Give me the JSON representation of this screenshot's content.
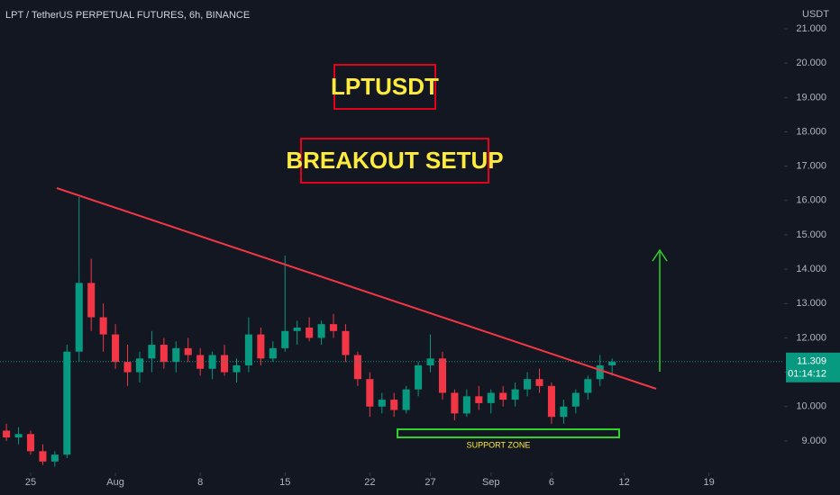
{
  "chart_data": {
    "type": "candlestick",
    "title": "LPT / TetherUS PERPETUAL FUTURES, 6h, BINANCE",
    "currency": "USDT",
    "annotations": [
      "LPTUSDT",
      "BREAKOUT SETUP",
      "SUPPORT ZONE"
    ],
    "last_price": 11.309,
    "countdown": "01:14:12",
    "up_color": "#089981",
    "down_color": "#f23645",
    "x": [
      -2,
      -1,
      0,
      1,
      2,
      3,
      4,
      5,
      6,
      7,
      8,
      9,
      10,
      11,
      12,
      13,
      14,
      15,
      16,
      17,
      18,
      19,
      20,
      21,
      22,
      23,
      24,
      25,
      26,
      27,
      28,
      29,
      30,
      31,
      32,
      33,
      34,
      35,
      36,
      37,
      38,
      39,
      40,
      41,
      42,
      43,
      44,
      45,
      46,
      47,
      48
    ],
    "series": [
      {
        "open": [
          9.3,
          9.1,
          9.2,
          8.7,
          8.4,
          8.6,
          11.6,
          13.6,
          12.6,
          12.1,
          11.3,
          11.0,
          11.4,
          11.8,
          11.3,
          11.7,
          11.5,
          11.1,
          11.5,
          11.0,
          11.2,
          12.1,
          11.4,
          11.7,
          12.2,
          12.3,
          12.0,
          12.4,
          12.2,
          11.5,
          10.8,
          10.0,
          10.2,
          9.9,
          10.5,
          11.2,
          11.4,
          10.4,
          9.8,
          10.3,
          10.1,
          10.4,
          10.2,
          10.5,
          10.8,
          10.6,
          9.7,
          10.0,
          10.4,
          10.8,
          11.2
        ],
        "high": [
          9.5,
          9.4,
          9.3,
          8.9,
          8.7,
          11.8,
          16.1,
          14.3,
          13.0,
          12.4,
          11.8,
          11.6,
          12.2,
          12.0,
          11.9,
          12.0,
          11.7,
          11.6,
          11.8,
          11.4,
          12.6,
          12.3,
          11.9,
          14.4,
          12.5,
          12.6,
          12.5,
          12.7,
          12.4,
          11.6,
          11.0,
          10.4,
          10.4,
          10.6,
          11.3,
          12.1,
          11.6,
          10.5,
          10.5,
          10.6,
          10.5,
          10.6,
          10.7,
          11.0,
          11.1,
          10.7,
          10.2,
          10.5,
          10.9,
          11.5,
          11.4
        ],
        "low": [
          9.0,
          8.9,
          8.6,
          8.3,
          8.25,
          8.5,
          11.3,
          12.2,
          11.6,
          11.1,
          10.6,
          10.7,
          11.0,
          11.1,
          11.0,
          11.3,
          10.9,
          10.8,
          10.9,
          10.7,
          11.0,
          11.2,
          11.3,
          11.6,
          11.8,
          11.9,
          11.8,
          12.0,
          11.3,
          10.6,
          9.7,
          9.8,
          9.7,
          9.8,
          10.3,
          11.0,
          10.2,
          9.6,
          9.7,
          9.9,
          9.8,
          10.0,
          10.0,
          10.3,
          10.4,
          9.5,
          9.5,
          9.8,
          10.2,
          10.6,
          10.9
        ],
        "close": [
          9.1,
          9.2,
          8.7,
          8.4,
          8.6,
          11.6,
          13.6,
          12.6,
          12.1,
          11.3,
          11.0,
          11.4,
          11.8,
          11.3,
          11.7,
          11.5,
          11.1,
          11.5,
          11.0,
          11.2,
          12.1,
          11.4,
          11.7,
          12.2,
          12.3,
          12.0,
          12.4,
          12.2,
          11.5,
          10.8,
          10.0,
          10.2,
          9.9,
          10.5,
          11.2,
          11.4,
          10.4,
          9.8,
          10.3,
          10.1,
          10.4,
          10.2,
          10.5,
          10.8,
          10.6,
          9.7,
          10.0,
          10.4,
          10.8,
          11.2,
          11.309
        ]
      }
    ],
    "xlim": [
      -2.53,
      62.2
    ],
    "xticks": [
      {
        "value": 0,
        "label": "25"
      },
      {
        "value": 7,
        "label": "Aug"
      },
      {
        "value": 14,
        "label": "8"
      },
      {
        "value": 21,
        "label": "15"
      },
      {
        "value": 28,
        "label": "22"
      },
      {
        "value": 33,
        "label": "27"
      },
      {
        "value": 38,
        "label": "Sep"
      },
      {
        "value": 43,
        "label": "6"
      },
      {
        "value": 49,
        "label": "12"
      },
      {
        "value": 56,
        "label": "19"
      }
    ],
    "ylim": [
      8.08,
      21.84
    ],
    "yticks": [
      {
        "value": 9,
        "label": "9.000"
      },
      {
        "value": 10,
        "label": "10.000"
      },
      {
        "value": 11,
        "label": "11.000"
      },
      {
        "value": 12,
        "label": "12.000"
      },
      {
        "value": 13,
        "label": "13.000"
      },
      {
        "value": 14,
        "label": "14.000"
      },
      {
        "value": 15,
        "label": "15.000"
      },
      {
        "value": 16,
        "label": "16.000"
      },
      {
        "value": 17,
        "label": "17.000"
      },
      {
        "value": 18,
        "label": "18.000"
      },
      {
        "value": 19,
        "label": "19.000"
      },
      {
        "value": 20,
        "label": "20.000"
      },
      {
        "value": 21,
        "label": "21.000"
      }
    ]
  }
}
